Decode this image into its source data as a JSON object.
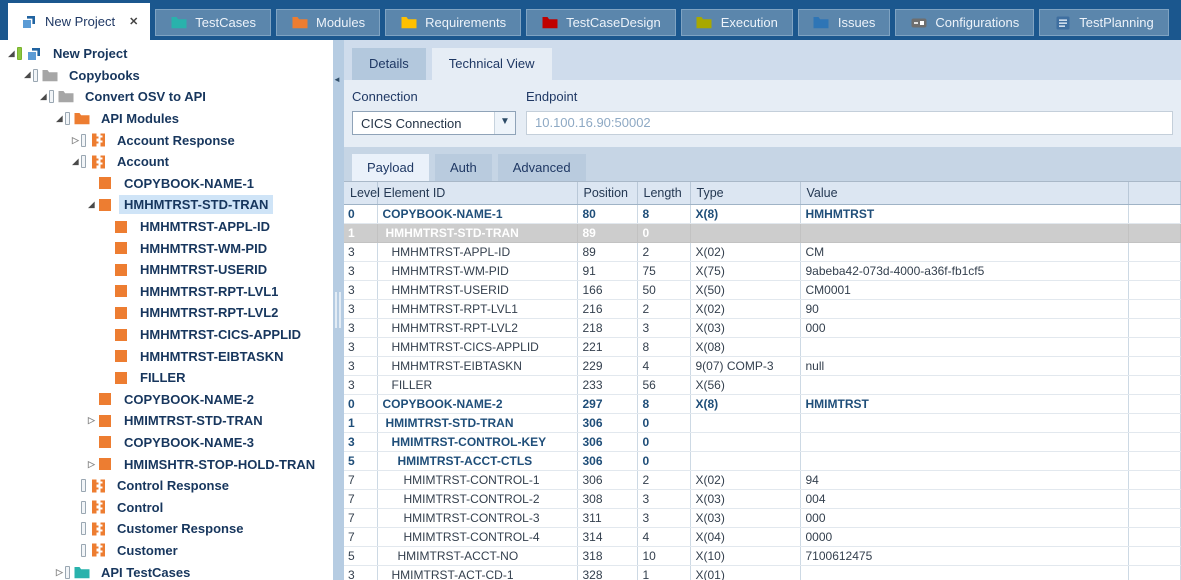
{
  "top_tabs": [
    {
      "label": "New Project",
      "icon": "project",
      "active": true,
      "closable": true
    },
    {
      "label": "TestCases",
      "icon": "folder",
      "color": "#29b2ac"
    },
    {
      "label": "Modules",
      "icon": "folder",
      "color": "#ed7d31"
    },
    {
      "label": "Requirements",
      "icon": "folder",
      "color": "#ffc000"
    },
    {
      "label": "TestCaseDesign",
      "icon": "folder",
      "color": "#c00000"
    },
    {
      "label": "Execution",
      "icon": "folder",
      "color": "#a8a800"
    },
    {
      "label": "Issues",
      "icon": "folder",
      "color": "#2e75b6"
    },
    {
      "label": "Configurations",
      "icon": "config",
      "color": "#7f7f7f"
    },
    {
      "label": "TestPlanning",
      "icon": "planning",
      "color": "#3f6fa0"
    }
  ],
  "tree": {
    "items": [
      {
        "label": "New Project",
        "level": 0,
        "expander": "expanded",
        "bar": "green",
        "icon": "project"
      },
      {
        "label": "Copybooks",
        "level": 1,
        "expander": "expanded",
        "bar": "gray",
        "icon": "folder",
        "color": "#a6a6a6"
      },
      {
        "label": "Convert OSV to API",
        "level": 2,
        "expander": "expanded",
        "bar": "gray",
        "icon": "folder",
        "color": "#a6a6a6"
      },
      {
        "label": "API Modules",
        "level": 3,
        "expander": "expanded",
        "bar": "gray",
        "icon": "folder",
        "color": "#ed7d31"
      },
      {
        "label": "Account Response",
        "level": 4,
        "expander": "collapsed",
        "bar": "gray",
        "icon": "module",
        "color": "#ed7d31"
      },
      {
        "label": "Account",
        "level": 4,
        "expander": "expanded",
        "bar": "gray",
        "icon": "module",
        "color": "#ed7d31"
      },
      {
        "label": "COPYBOOK-NAME-1",
        "level": 5,
        "expander": "none",
        "bar": "none",
        "icon": "square"
      },
      {
        "label": "HMHMTRST-STD-TRAN",
        "level": 5,
        "expander": "expanded",
        "bar": "none",
        "icon": "square",
        "selected": true
      },
      {
        "label": "HMHMTRST-APPL-ID",
        "level": 6,
        "expander": "none",
        "bar": "none",
        "icon": "square"
      },
      {
        "label": "HMHMTRST-WM-PID",
        "level": 6,
        "expander": "none",
        "bar": "none",
        "icon": "square"
      },
      {
        "label": "HMHMTRST-USERID",
        "level": 6,
        "expander": "none",
        "bar": "none",
        "icon": "square"
      },
      {
        "label": "HMHMTRST-RPT-LVL1",
        "level": 6,
        "expander": "none",
        "bar": "none",
        "icon": "square"
      },
      {
        "label": "HMHMTRST-RPT-LVL2",
        "level": 6,
        "expander": "none",
        "bar": "none",
        "icon": "square"
      },
      {
        "label": "HMHMTRST-CICS-APPLID",
        "level": 6,
        "expander": "none",
        "bar": "none",
        "icon": "square"
      },
      {
        "label": "HMHMTRST-EIBTASKN",
        "level": 6,
        "expander": "none",
        "bar": "none",
        "icon": "square"
      },
      {
        "label": "FILLER",
        "level": 6,
        "expander": "none",
        "bar": "none",
        "icon": "square"
      },
      {
        "label": "COPYBOOK-NAME-2",
        "level": 5,
        "expander": "none",
        "bar": "none",
        "icon": "square"
      },
      {
        "label": "HMIMTRST-STD-TRAN",
        "level": 5,
        "expander": "collapsed",
        "bar": "none",
        "icon": "square"
      },
      {
        "label": "COPYBOOK-NAME-3",
        "level": 5,
        "expander": "none",
        "bar": "none",
        "icon": "square"
      },
      {
        "label": "HMIMSHTR-STOP-HOLD-TRAN",
        "level": 5,
        "expander": "collapsed",
        "bar": "none",
        "icon": "square"
      },
      {
        "label": "Control Response",
        "level": 4,
        "expander": "none",
        "bar": "gray",
        "icon": "module",
        "color": "#ed7d31"
      },
      {
        "label": "Control",
        "level": 4,
        "expander": "none",
        "bar": "gray",
        "icon": "module",
        "color": "#ed7d31"
      },
      {
        "label": "Customer Response",
        "level": 4,
        "expander": "none",
        "bar": "gray",
        "icon": "module",
        "color": "#ed7d31"
      },
      {
        "label": "Customer",
        "level": 4,
        "expander": "none",
        "bar": "gray",
        "icon": "module",
        "color": "#ed7d31"
      },
      {
        "label": "API TestCases",
        "level": 3,
        "expander": "collapsed",
        "bar": "gray",
        "icon": "folder",
        "color": "#29b2ac"
      }
    ]
  },
  "panel": {
    "view_tabs": [
      {
        "label": "Details",
        "active": false
      },
      {
        "label": "Technical View",
        "active": true
      }
    ],
    "connection": {
      "label": "Connection",
      "value": "CICS Connection"
    },
    "endpoint": {
      "label": "Endpoint",
      "value": "10.100.16.90:50002"
    },
    "sub_tabs": [
      {
        "label": "Payload",
        "active": true
      },
      {
        "label": "Auth",
        "active": false
      },
      {
        "label": "Advanced",
        "active": false
      }
    ],
    "table": {
      "columns": [
        "Level",
        "Element ID",
        "Position",
        "Length",
        "Type",
        "Value",
        ""
      ],
      "rows": [
        {
          "level": "0",
          "id": "COPYBOOK-NAME-1",
          "pos": "80",
          "len": "8",
          "type": "X(8)",
          "val": "HMHMTRST",
          "style": "bold"
        },
        {
          "level": "1",
          "id": "HMHMTRST-STD-TRAN",
          "pos": "89",
          "len": "0",
          "type": "",
          "val": "",
          "style": "sel"
        },
        {
          "level": "3",
          "id": "HMHMTRST-APPL-ID",
          "pos": "89",
          "len": "2",
          "type": "X(02)",
          "val": "CM",
          "style": "normal"
        },
        {
          "level": "3",
          "id": "HMHMTRST-WM-PID",
          "pos": "91",
          "len": "75",
          "type": "X(75)",
          "val": "9abeba42-073d-4000-a36f-fb1cf5",
          "style": "normal"
        },
        {
          "level": "3",
          "id": "HMHMTRST-USERID",
          "pos": "166",
          "len": "50",
          "type": "X(50)",
          "val": "CM0001",
          "style": "normal"
        },
        {
          "level": "3",
          "id": "HMHMTRST-RPT-LVL1",
          "pos": "216",
          "len": "2",
          "type": "X(02)",
          "val": "90",
          "style": "normal"
        },
        {
          "level": "3",
          "id": "HMHMTRST-RPT-LVL2",
          "pos": "218",
          "len": "3",
          "type": "X(03)",
          "val": "000",
          "style": "normal"
        },
        {
          "level": "3",
          "id": "HMHMTRST-CICS-APPLID",
          "pos": "221",
          "len": "8",
          "type": "X(08)",
          "val": "",
          "style": "normal"
        },
        {
          "level": "3",
          "id": "HMHMTRST-EIBTASKN",
          "pos": "229",
          "len": "4",
          "type": "9(07) COMP-3",
          "val": "null",
          "style": "normal"
        },
        {
          "level": "3",
          "id": "FILLER",
          "pos": "233",
          "len": "56",
          "type": "X(56)",
          "val": "",
          "style": "normal"
        },
        {
          "level": "0",
          "id": "COPYBOOK-NAME-2",
          "pos": "297",
          "len": "8",
          "type": "X(8)",
          "val": "HMIMTRST",
          "style": "bold"
        },
        {
          "level": "1",
          "id": "HMIMTRST-STD-TRAN",
          "pos": "306",
          "len": "0",
          "type": "",
          "val": "",
          "style": "bold"
        },
        {
          "level": "3",
          "id": "HMIMTRST-CONTROL-KEY",
          "pos": "306",
          "len": "0",
          "type": "",
          "val": "",
          "style": "bold"
        },
        {
          "level": "5",
          "id": "HMIMTRST-ACCT-CTLS",
          "pos": "306",
          "len": "0",
          "type": "",
          "val": "",
          "style": "bold"
        },
        {
          "level": "7",
          "id": "HMIMTRST-CONTROL-1",
          "pos": "306",
          "len": "2",
          "type": "X(02)",
          "val": "94",
          "style": "normal"
        },
        {
          "level": "7",
          "id": "HMIMTRST-CONTROL-2",
          "pos": "308",
          "len": "3",
          "type": "X(03)",
          "val": "004",
          "style": "normal"
        },
        {
          "level": "7",
          "id": "HMIMTRST-CONTROL-3",
          "pos": "311",
          "len": "3",
          "type": "X(03)",
          "val": "000",
          "style": "normal"
        },
        {
          "level": "7",
          "id": "HMIMTRST-CONTROL-4",
          "pos": "314",
          "len": "4",
          "type": "X(04)",
          "val": "0000",
          "style": "normal"
        },
        {
          "level": "5",
          "id": "HMIMTRST-ACCT-NO",
          "pos": "318",
          "len": "10",
          "type": "X(10)",
          "val": "7100612475",
          "style": "normal"
        },
        {
          "level": "3",
          "id": "HMIMTRST-ACT-CD-1",
          "pos": "328",
          "len": "1",
          "type": "X(01)",
          "val": "",
          "style": "normal"
        },
        {
          "level": "",
          "id": "",
          "pos": "",
          "len": "",
          "type": "",
          "val": "",
          "style": "normal"
        }
      ]
    }
  },
  "colors": {
    "topbar": "#1b578e",
    "accent_orange": "#ed7d31",
    "selection_blue": "#cfe4f7",
    "selected_row_gray": "#cdcdcd",
    "bold_row_text": "#1f4e79"
  }
}
